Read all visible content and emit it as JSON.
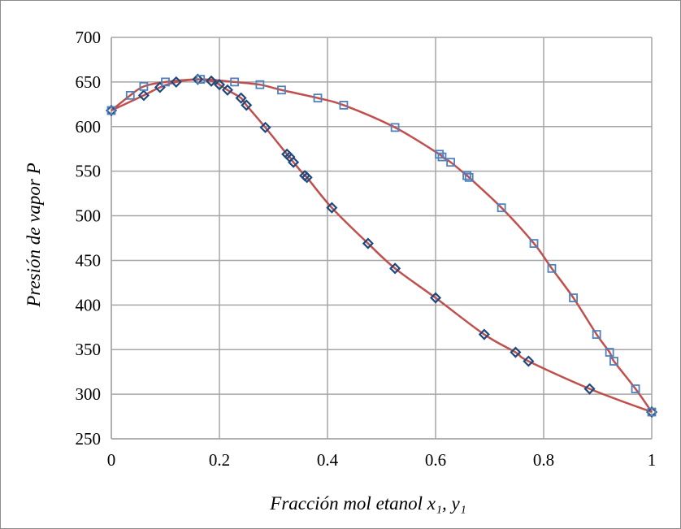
{
  "chart_data": {
    "type": "scatter",
    "xlabel": "Fracción mol etanol x₁, y₁",
    "ylabel": "Presión de vapor P",
    "xlim": [
      0,
      1
    ],
    "ylim": [
      250,
      700
    ],
    "x_ticks": [
      "0",
      "0.2",
      "0.4",
      "0.6",
      "0.8",
      "1"
    ],
    "y_ticks": [
      "250",
      "300",
      "350",
      "400",
      "450",
      "500",
      "550",
      "600",
      "650",
      "700"
    ],
    "grid": true,
    "fit_line_color": "#c0504d",
    "series": [
      {
        "marker": "diamond",
        "color": "#1f497d",
        "points": [
          [
            0.0,
            618
          ],
          [
            0.06,
            635
          ],
          [
            0.09,
            644
          ],
          [
            0.12,
            650
          ],
          [
            0.16,
            653
          ],
          [
            0.185,
            651
          ],
          [
            0.2,
            647
          ],
          [
            0.215,
            641
          ],
          [
            0.24,
            632
          ],
          [
            0.25,
            624
          ],
          [
            0.285,
            599
          ],
          [
            0.325,
            569
          ],
          [
            0.33,
            566
          ],
          [
            0.337,
            560
          ],
          [
            0.358,
            545
          ],
          [
            0.362,
            543
          ],
          [
            0.408,
            509
          ],
          [
            0.475,
            469
          ],
          [
            0.525,
            441
          ],
          [
            0.6,
            408
          ],
          [
            0.69,
            367
          ],
          [
            0.748,
            347
          ],
          [
            0.772,
            337
          ],
          [
            0.885,
            306
          ],
          [
            1.0,
            280
          ]
        ]
      },
      {
        "marker": "square",
        "color": "#4f81bd",
        "points": [
          [
            0.0,
            618
          ],
          [
            0.035,
            635
          ],
          [
            0.06,
            645
          ],
          [
            0.1,
            650
          ],
          [
            0.165,
            653
          ],
          [
            0.228,
            650
          ],
          [
            0.275,
            647
          ],
          [
            0.315,
            641
          ],
          [
            0.382,
            632
          ],
          [
            0.43,
            624
          ],
          [
            0.525,
            599
          ],
          [
            0.607,
            569
          ],
          [
            0.612,
            566
          ],
          [
            0.628,
            560
          ],
          [
            0.658,
            545
          ],
          [
            0.662,
            543
          ],
          [
            0.722,
            509
          ],
          [
            0.782,
            469
          ],
          [
            0.815,
            441
          ],
          [
            0.855,
            408
          ],
          [
            0.898,
            367
          ],
          [
            0.922,
            347
          ],
          [
            0.93,
            337
          ],
          [
            0.97,
            306
          ],
          [
            1.0,
            280
          ]
        ]
      }
    ]
  }
}
